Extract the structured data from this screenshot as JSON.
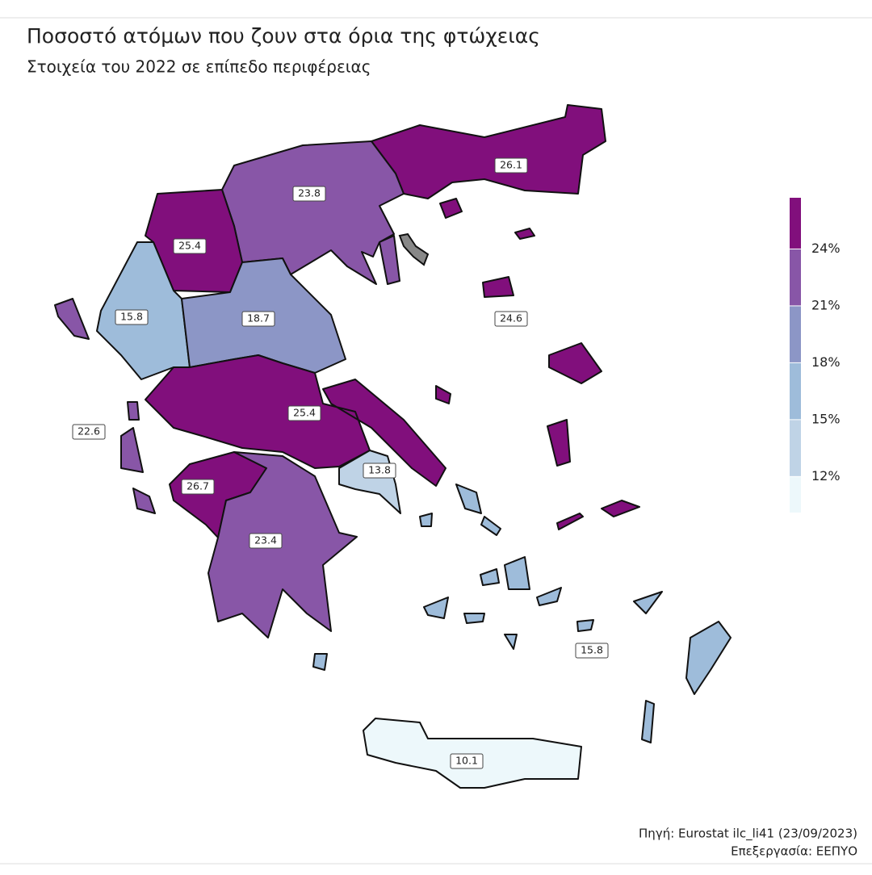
{
  "chart_data": {
    "type": "choropleth",
    "title": "Ποσοστό ατόμων που ζουν στα όρια της φτώχειας",
    "subtitle": "Στοιχεία του 2022 σε επίπεδο περιφέρειας",
    "values": [
      26.1,
      23.8,
      25.4,
      15.8,
      18.7,
      24.6,
      22.6,
      25.4,
      13.8,
      26.7,
      23.4,
      15.8,
      10.1
    ],
    "legend": {
      "lim": [
        10.1,
        26.7
      ],
      "ticks": [
        {
          "value": 12,
          "label": "12%"
        },
        {
          "value": 15,
          "label": "15%"
        },
        {
          "value": 18,
          "label": "18%"
        },
        {
          "value": 21,
          "label": "21%"
        },
        {
          "value": 24,
          "label": "24%"
        }
      ],
      "colors": [
        "#edf8fb",
        "#bfd3e6",
        "#9ebcda",
        "#8c96c6",
        "#8856a7",
        "#810f7c"
      ]
    },
    "source": [
      "Πηγή: Eurostat ilc_li41 (23/09/2023)",
      "Επεξεργασία: ΕΕΠΥΟ"
    ]
  }
}
